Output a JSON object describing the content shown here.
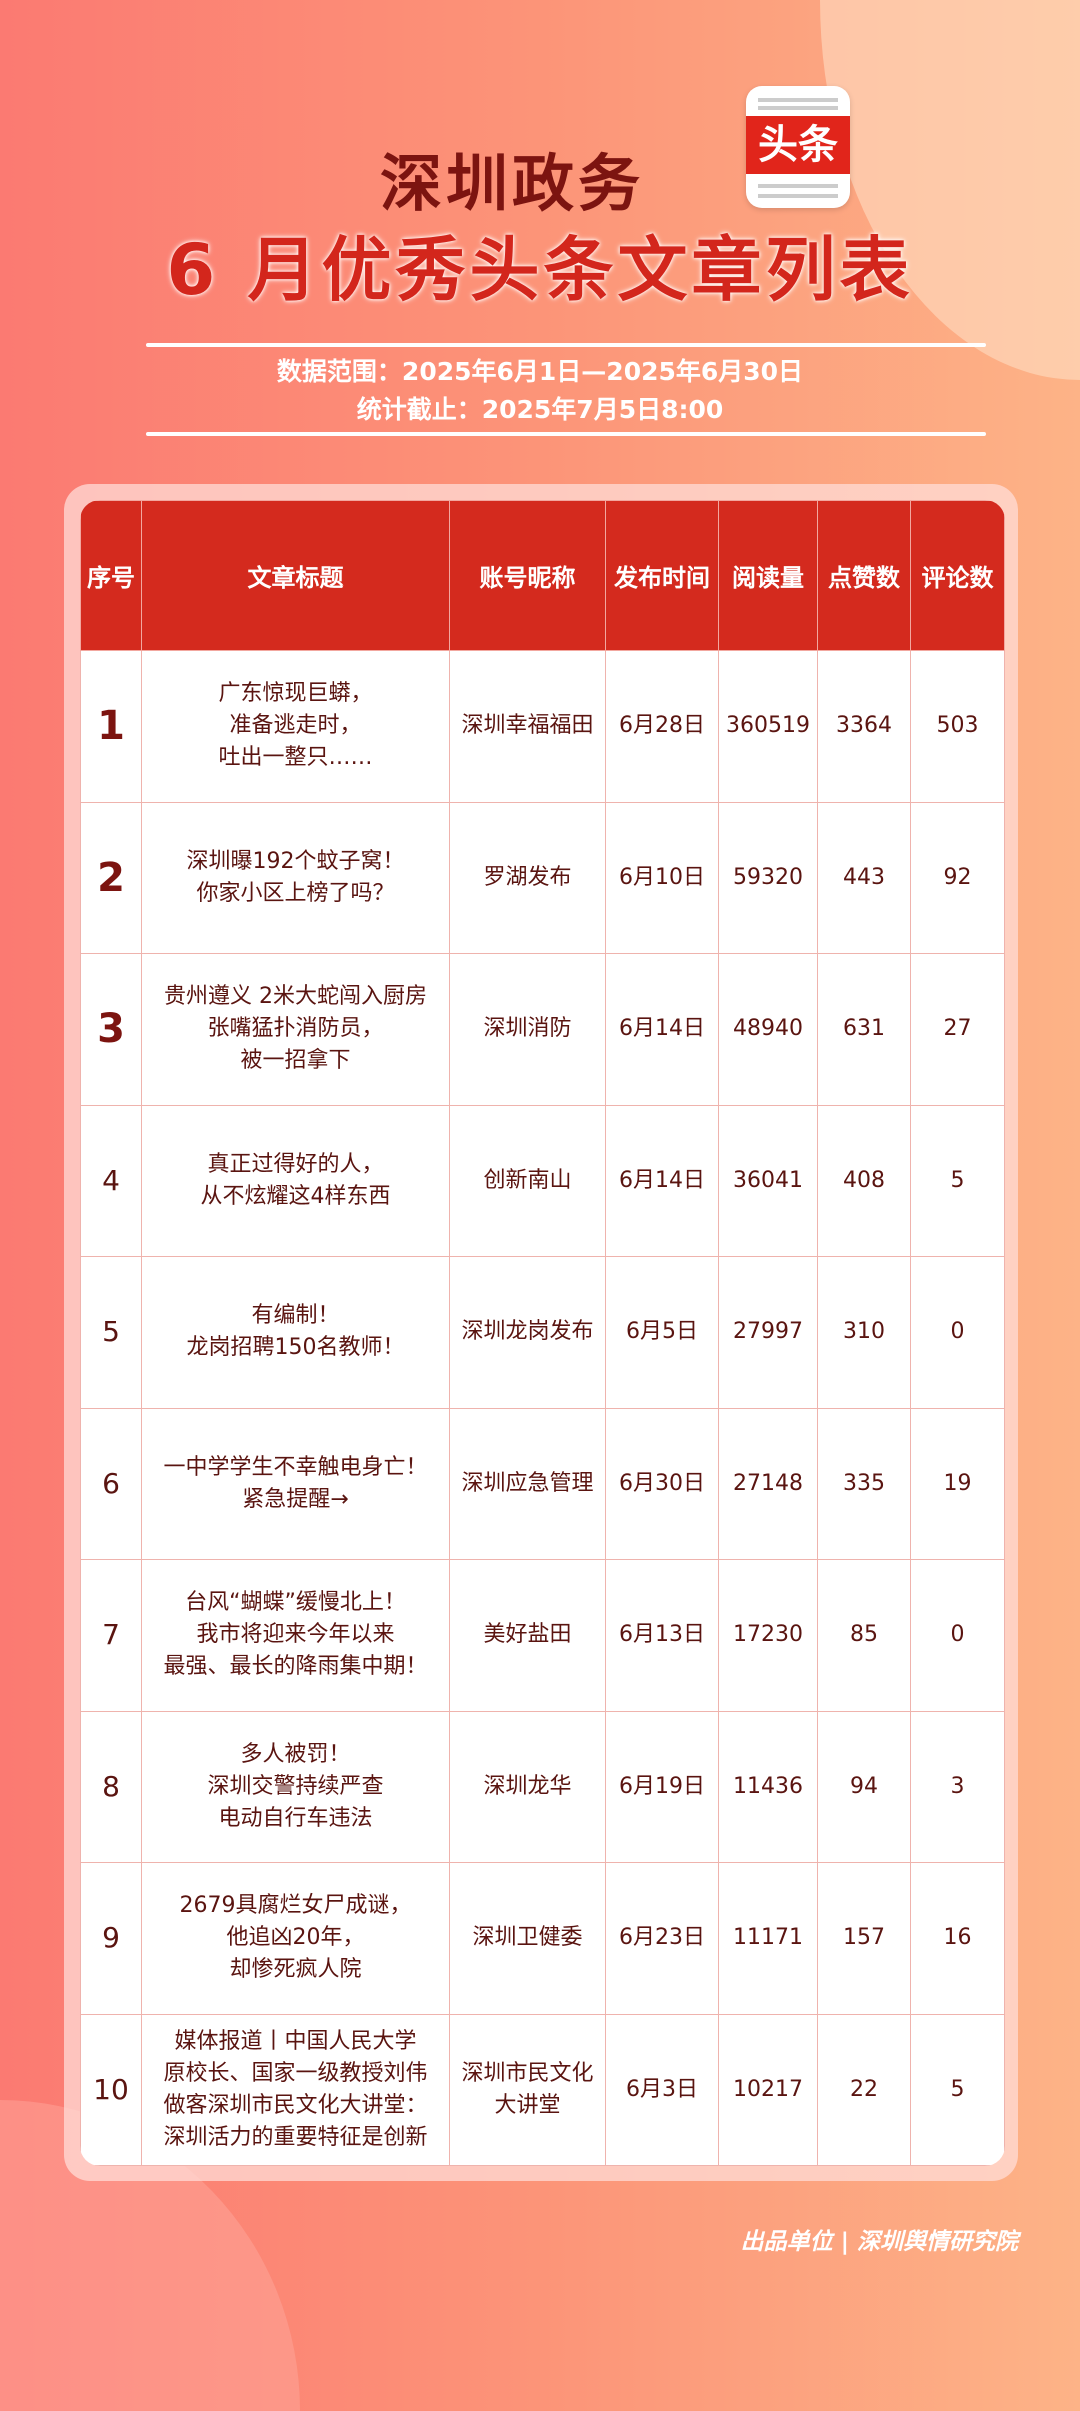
{
  "header": {
    "title_line1": "深圳政务",
    "logo_text": "头条",
    "title_line2": "6 月优秀头条文章列表",
    "data_range": "数据范围：2025年6月1日—2025年6月30日",
    "cutoff": "统计截止：2025年7月5日8:00"
  },
  "colors": {
    "header_bg": "#d42a1e",
    "title_dark": "#7c1410",
    "title_red": "#d3261c"
  },
  "table": {
    "columns": [
      "序号",
      "文章标题",
      "账号昵称",
      "发布时间",
      "阅读量",
      "点赞数",
      "评论数"
    ],
    "rows": [
      {
        "rank": "1",
        "title": "广东惊现巨蟒，\n准备逃走时，\n吐出一整只……",
        "account": "深圳幸福福田",
        "date": "6月28日",
        "reads": "360519",
        "likes": "3364",
        "comments": "503"
      },
      {
        "rank": "2",
        "title": "深圳曝192个蚊子窝！\n你家小区上榜了吗？",
        "account": "罗湖发布",
        "date": "6月10日",
        "reads": "59320",
        "likes": "443",
        "comments": "92"
      },
      {
        "rank": "3",
        "title": "贵州遵义 2米大蛇闯入厨房\n张嘴猛扑消防员，\n被一招拿下",
        "account": "深圳消防",
        "date": "6月14日",
        "reads": "48940",
        "likes": "631",
        "comments": "27"
      },
      {
        "rank": "4",
        "title": "真正过得好的人，\n从不炫耀这4样东西",
        "account": "创新南山",
        "date": "6月14日",
        "reads": "36041",
        "likes": "408",
        "comments": "5"
      },
      {
        "rank": "5",
        "title": "有编制！\n龙岗招聘150名教师！",
        "account": "深圳龙岗发布",
        "date": "6月5日",
        "reads": "27997",
        "likes": "310",
        "comments": "0"
      },
      {
        "rank": "6",
        "title": "一中学学生不幸触电身亡！\n紧急提醒→",
        "account": "深圳应急管理",
        "date": "6月30日",
        "reads": "27148",
        "likes": "335",
        "comments": "19"
      },
      {
        "rank": "7",
        "title": "台风“蝴蝶”缓慢北上！\n我市将迎来今年以来\n最强、最长的降雨集中期！",
        "account": "美好盐田",
        "date": "6月13日",
        "reads": "17230",
        "likes": "85",
        "comments": "0"
      },
      {
        "rank": "8",
        "title": "多人被罚！\n深圳交警持续严查\n电动自行车违法",
        "account": "深圳龙华",
        "date": "6月19日",
        "reads": "11436",
        "likes": "94",
        "comments": "3"
      },
      {
        "rank": "9",
        "title": "2679具腐烂女尸成谜，\n他追凶20年，\n却惨死疯人院",
        "account": "深圳卫健委",
        "date": "6月23日",
        "reads": "11171",
        "likes": "157",
        "comments": "16"
      },
      {
        "rank": "10",
        "title": "媒体报道丨中国人民大学\n原校长、国家一级教授刘伟\n做客深圳市民文化大讲堂：\n深圳活力的重要特征是创新",
        "account": "深圳市民文化\n大讲堂",
        "date": "6月3日",
        "reads": "10217",
        "likes": "22",
        "comments": "5"
      }
    ]
  },
  "footer": {
    "producer": "出品单位 | 深圳舆情研究院"
  }
}
